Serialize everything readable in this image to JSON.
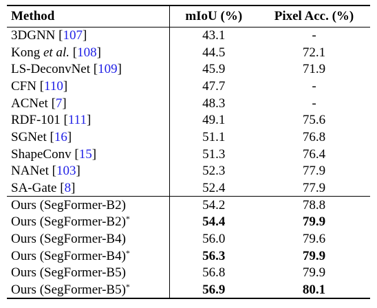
{
  "table": {
    "headers": {
      "method": "Method",
      "miou": "mIoU (%)",
      "pixel_acc": "Pixel Acc. (%)"
    },
    "baselines": [
      {
        "name": "3DGNN",
        "name_suffix": "",
        "ref": "107",
        "miou": "43.1",
        "pixel_acc": "-"
      },
      {
        "name": "Kong",
        "name_suffix": "et al.",
        "ref": "108",
        "miou": "44.5",
        "pixel_acc": "72.1"
      },
      {
        "name": "LS-DeconvNet",
        "name_suffix": "",
        "ref": "109",
        "miou": "45.9",
        "pixel_acc": "71.9"
      },
      {
        "name": "CFN",
        "name_suffix": "",
        "ref": "110",
        "miou": "47.7",
        "pixel_acc": "-"
      },
      {
        "name": "ACNet",
        "name_suffix": "",
        "ref": "7",
        "miou": "48.3",
        "pixel_acc": "-"
      },
      {
        "name": "RDF-101",
        "name_suffix": "",
        "ref": "111",
        "miou": "49.1",
        "pixel_acc": "75.6"
      },
      {
        "name": "SGNet",
        "name_suffix": "",
        "ref": "16",
        "miou": "51.1",
        "pixel_acc": "76.8"
      },
      {
        "name": "ShapeConv",
        "name_suffix": "",
        "ref": "15",
        "miou": "51.3",
        "pixel_acc": "76.4"
      },
      {
        "name": "NANet",
        "name_suffix": "",
        "ref": "103",
        "miou": "52.3",
        "pixel_acc": "77.9"
      },
      {
        "name": "SA-Gate",
        "name_suffix": "",
        "ref": "8",
        "miou": "52.4",
        "pixel_acc": "77.9"
      }
    ],
    "ours": [
      {
        "name": "Ours (SegFormer-B2)",
        "mark": "",
        "miou": "54.2",
        "pixel_acc": "78.8",
        "bold": false
      },
      {
        "name": "Ours (SegFormer-B2)",
        "mark": "*",
        "miou": "54.4",
        "pixel_acc": "79.9",
        "bold": true
      },
      {
        "name": "Ours (SegFormer-B4)",
        "mark": "",
        "miou": "56.0",
        "pixel_acc": "79.6",
        "bold": false
      },
      {
        "name": "Ours (SegFormer-B4)",
        "mark": "*",
        "miou": "56.3",
        "pixel_acc": "79.9",
        "bold": true
      },
      {
        "name": "Ours (SegFormer-B5)",
        "mark": "",
        "miou": "56.8",
        "pixel_acc": "79.9",
        "bold": false
      },
      {
        "name": "Ours (SegFormer-B5)",
        "mark": "*",
        "miou": "56.9",
        "pixel_acc": "80.1",
        "bold": true
      }
    ]
  },
  "colors": {
    "citation": "#1f1fe6",
    "text": "#000000"
  }
}
